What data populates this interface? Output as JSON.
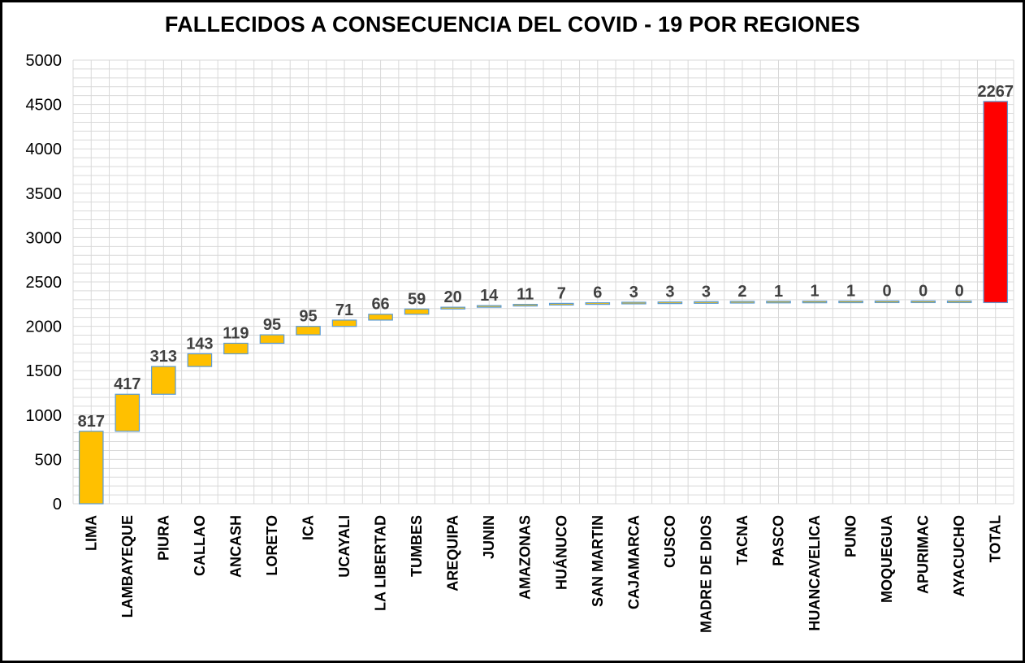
{
  "chart_data": {
    "type": "bar",
    "subtype": "waterfall",
    "title": "FALLECIDOS A CONSECUENCIA DEL COVID - 19 POR REGIONES",
    "categories": [
      "LIMA",
      "LAMBAYEQUE",
      "PIURA",
      "CALLAO",
      "ANCASH",
      "LORETO",
      "ICA",
      "UCAYALI",
      "LA LIBERTAD",
      "TUMBES",
      "AREQUIPA",
      "JUNIN",
      "AMAZONAS",
      "HUÁNUCO",
      "SAN MARTIN",
      "CAJAMARCA",
      "CUSCO",
      "MADRE DE DIOS",
      "TACNA",
      "PASCO",
      "HUANCAVELICA",
      "PUNO",
      "MOQUEGUA",
      "APURIMAC",
      "AYACUCHO",
      "TOTAL"
    ],
    "values": [
      817,
      417,
      313,
      143,
      119,
      95,
      95,
      71,
      66,
      59,
      20,
      14,
      11,
      7,
      6,
      3,
      3,
      3,
      2,
      1,
      1,
      1,
      0,
      0,
      0,
      2267
    ],
    "y_ticks": [
      "0",
      "500",
      "1000",
      "1500",
      "2000",
      "2500",
      "3000",
      "3500",
      "4000",
      "4500",
      "5000"
    ],
    "ylim": [
      0,
      5000
    ],
    "grid": true,
    "colors": {
      "increase": "#ffc000",
      "total": "#ff0000",
      "bar_border": "#5b9bd5",
      "grid": "#d9d9d9"
    }
  }
}
